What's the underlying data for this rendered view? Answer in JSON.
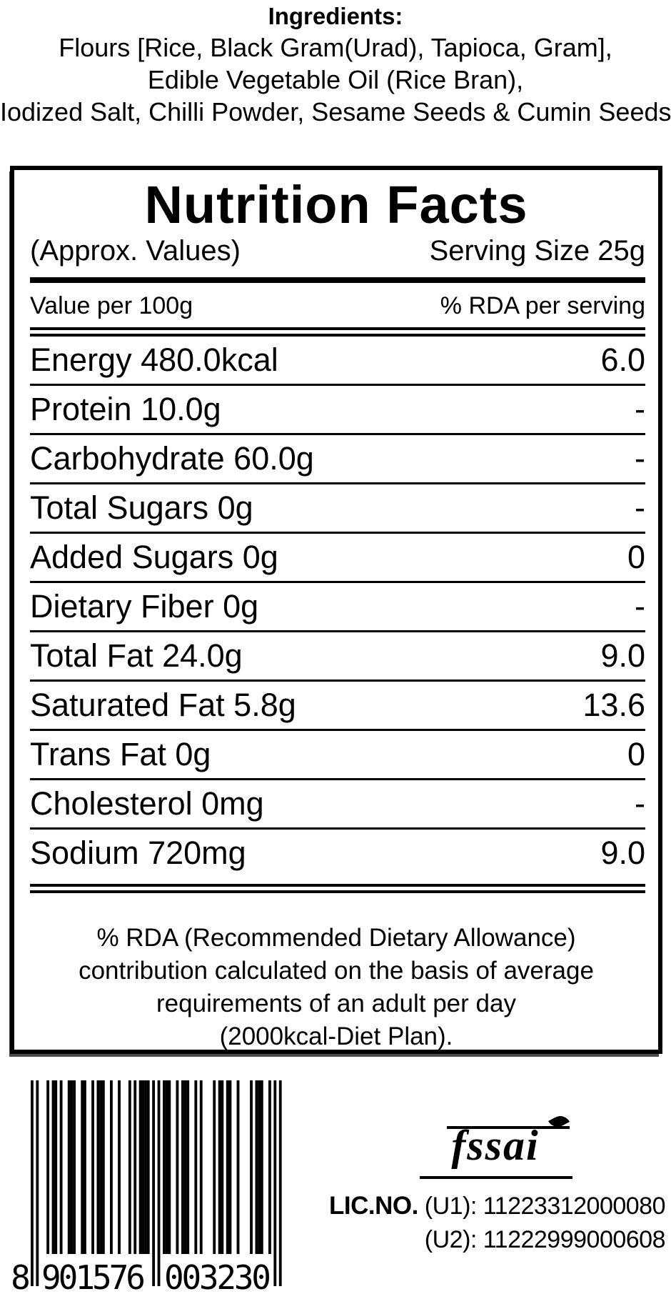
{
  "colors": {
    "ink": "#000000",
    "background": "#ffffff"
  },
  "ingredients": {
    "heading": "Ingredients:",
    "lines": [
      "Flours [Rice, Black Gram(Urad), Tapioca, Gram],",
      "Edible Vegetable Oil (Rice Bran),",
      "Iodized Salt, Chilli Powder, Sesame Seeds & Cumin Seeds"
    ]
  },
  "nutrition": {
    "title": "Nutrition Facts",
    "approx_label": "(Approx. Values)",
    "serving_label": "Serving Size 25g",
    "col_left": "Value per 100g",
    "col_right": "% RDA per serving",
    "rows": [
      {
        "label": "Energy 480.0kcal",
        "value": "6.0"
      },
      {
        "label": "Protein 10.0g",
        "value": "-"
      },
      {
        "label": "Carbohydrate 60.0g",
        "value": "-"
      },
      {
        "label": "Total Sugars 0g",
        "value": "-"
      },
      {
        "label": "Added Sugars 0g",
        "value": "0"
      },
      {
        "label": "Dietary Fiber 0g",
        "value": "-"
      },
      {
        "label": "Total Fat 24.0g",
        "value": "9.0"
      },
      {
        "label": "Saturated Fat 5.8g",
        "value": "13.6"
      },
      {
        "label": "Trans Fat 0g",
        "value": "0"
      },
      {
        "label": "Cholesterol 0mg",
        "value": "-"
      },
      {
        "label": "Sodium 720mg",
        "value": "9.0"
      }
    ],
    "note_lines": [
      "% RDA (Recommended Dietary Allowance)",
      "contribution calculated on the basis of average",
      "requirements of an adult per day",
      "(2000kcal-Diet Plan)."
    ]
  },
  "barcode": {
    "number": "8901576003230",
    "display": "8 901576 003230"
  },
  "footer": {
    "fssai_label": "fssai",
    "lic_prefix": "LIC.NO.",
    "lic_line1": " (U1): 11223312000080",
    "lic_line2": "(U2): 11222999000608"
  }
}
